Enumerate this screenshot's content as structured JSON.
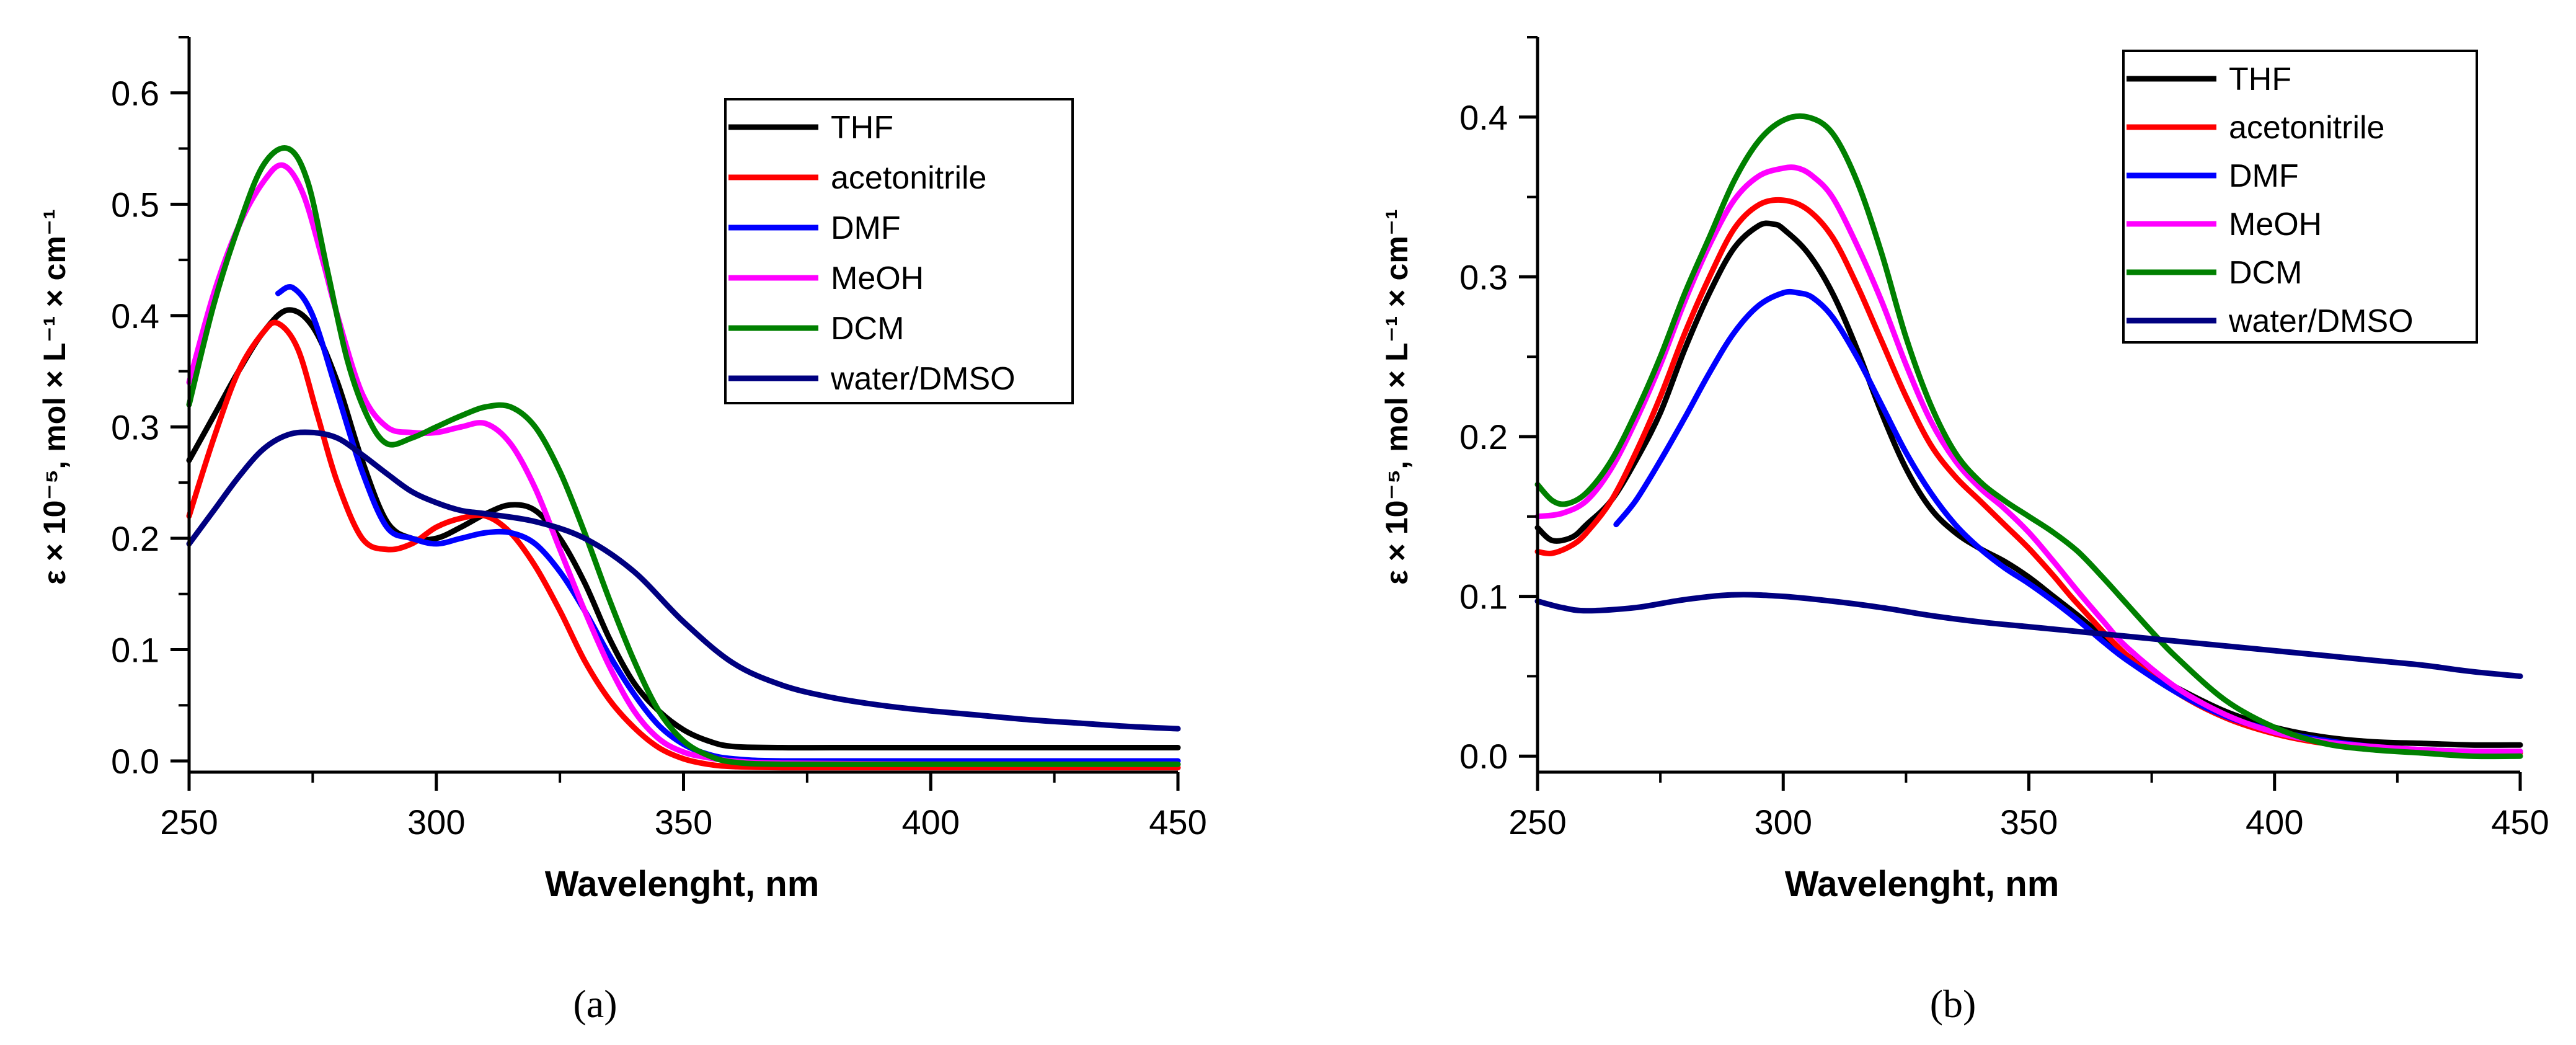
{
  "chart_data": [
    {
      "type": "line",
      "panel": "a",
      "caption": "(a)",
      "xlabel": "Wavelenght, nm",
      "ylabel": "ε × 10⁻⁵, mol × L⁻¹ × cm⁻¹",
      "xlim": [
        250,
        450
      ],
      "ylim": [
        -0.01,
        0.65
      ],
      "xticks": [
        250,
        300,
        350,
        400,
        450
      ],
      "yticks": [
        0.0,
        0.1,
        0.2,
        0.3,
        0.4,
        0.5,
        0.6
      ],
      "ytick_labels": [
        "0.0",
        "0.1",
        "0.2",
        "0.3",
        "0.4",
        "0.5",
        "0.6"
      ],
      "legend_position": "top-right",
      "series": [
        {
          "name": "THF",
          "color": "#000000",
          "x": [
            250,
            255,
            260,
            265,
            270,
            275,
            280,
            285,
            290,
            295,
            300,
            305,
            310,
            315,
            320,
            325,
            330,
            335,
            340,
            345,
            350,
            355,
            360,
            370,
            380,
            400,
            425,
            450
          ],
          "y": [
            0.27,
            0.31,
            0.35,
            0.385,
            0.405,
            0.39,
            0.34,
            0.27,
            0.215,
            0.2,
            0.2,
            0.21,
            0.222,
            0.23,
            0.225,
            0.2,
            0.16,
            0.11,
            0.07,
            0.045,
            0.028,
            0.018,
            0.013,
            0.012,
            0.012,
            0.012,
            0.012,
            0.012
          ]
        },
        {
          "name": "acetonitrile",
          "color": "#ff0000",
          "x": [
            250,
            255,
            260,
            265,
            268,
            272,
            276,
            280,
            285,
            290,
            295,
            300,
            305,
            310,
            315,
            320,
            325,
            330,
            335,
            340,
            345,
            350,
            355,
            360,
            370,
            400,
            450
          ],
          "y": [
            0.22,
            0.29,
            0.35,
            0.385,
            0.393,
            0.37,
            0.31,
            0.25,
            0.2,
            0.19,
            0.195,
            0.21,
            0.218,
            0.22,
            0.205,
            0.175,
            0.135,
            0.09,
            0.055,
            0.03,
            0.012,
            0.002,
            -0.003,
            -0.005,
            -0.006,
            -0.006,
            -0.006
          ]
        },
        {
          "name": "DMF",
          "color": "#0000ff",
          "x": [
            268,
            271,
            275,
            280,
            285,
            290,
            295,
            300,
            305,
            310,
            315,
            320,
            325,
            330,
            335,
            340,
            345,
            350,
            355,
            360,
            370,
            400,
            450
          ],
          "y": [
            0.42,
            0.425,
            0.4,
            0.33,
            0.26,
            0.21,
            0.2,
            0.195,
            0.2,
            0.205,
            0.205,
            0.195,
            0.17,
            0.135,
            0.095,
            0.06,
            0.032,
            0.015,
            0.006,
            0.002,
            0.0,
            0.0,
            0.0
          ]
        },
        {
          "name": "MeOH",
          "color": "#ff00ff",
          "x": [
            250,
            255,
            260,
            265,
            269,
            273,
            277,
            280,
            285,
            290,
            295,
            300,
            305,
            310,
            315,
            320,
            325,
            330,
            335,
            340,
            345,
            350,
            355,
            360,
            370,
            400,
            450
          ],
          "y": [
            0.34,
            0.42,
            0.48,
            0.52,
            0.535,
            0.51,
            0.45,
            0.4,
            0.33,
            0.3,
            0.295,
            0.295,
            0.3,
            0.303,
            0.285,
            0.245,
            0.19,
            0.135,
            0.085,
            0.045,
            0.02,
            0.008,
            0.003,
            0.0,
            -0.002,
            -0.003,
            -0.003
          ]
        },
        {
          "name": "DCM",
          "color": "#008000",
          "x": [
            250,
            255,
            260,
            265,
            270,
            274,
            278,
            282,
            286,
            290,
            295,
            300,
            305,
            310,
            315,
            320,
            325,
            330,
            335,
            340,
            345,
            350,
            355,
            360,
            370,
            400,
            450
          ],
          "y": [
            0.32,
            0.41,
            0.48,
            0.535,
            0.55,
            0.52,
            0.44,
            0.36,
            0.31,
            0.285,
            0.29,
            0.3,
            0.31,
            0.318,
            0.318,
            0.3,
            0.26,
            0.205,
            0.145,
            0.09,
            0.045,
            0.018,
            0.005,
            -0.001,
            -0.003,
            -0.003,
            -0.003
          ]
        },
        {
          "name": "water/DMSO",
          "color": "#000080",
          "x": [
            250,
            255,
            260,
            265,
            270,
            275,
            280,
            285,
            290,
            295,
            300,
            305,
            310,
            320,
            330,
            340,
            350,
            360,
            370,
            380,
            390,
            400,
            410,
            420,
            430,
            440,
            450
          ],
          "y": [
            0.195,
            0.225,
            0.255,
            0.28,
            0.293,
            0.295,
            0.29,
            0.275,
            0.258,
            0.242,
            0.232,
            0.225,
            0.222,
            0.215,
            0.2,
            0.17,
            0.125,
            0.088,
            0.068,
            0.057,
            0.05,
            0.045,
            0.041,
            0.037,
            0.034,
            0.031,
            0.029
          ]
        }
      ]
    },
    {
      "type": "line",
      "panel": "b",
      "caption": "(b)",
      "xlabel": "Wavelenght, nm",
      "ylabel": "ε × 10⁻⁵, mol × L⁻¹ × cm⁻¹",
      "xlim": [
        250,
        450
      ],
      "ylim": [
        -0.01,
        0.45
      ],
      "xticks": [
        250,
        300,
        350,
        400,
        450
      ],
      "yticks": [
        0.0,
        0.1,
        0.2,
        0.3,
        0.4
      ],
      "ytick_labels": [
        "0.0",
        "0.1",
        "0.2",
        "0.3",
        "0.4"
      ],
      "legend_position": "top-right",
      "series": [
        {
          "name": "THF",
          "color": "#000000",
          "x": [
            250,
            253,
            257,
            260,
            265,
            270,
            275,
            280,
            285,
            290,
            295,
            298,
            300,
            305,
            310,
            315,
            320,
            325,
            330,
            335,
            340,
            345,
            350,
            355,
            360,
            365,
            370,
            375,
            380,
            390,
            400,
            410,
            420,
            430,
            440,
            450
          ],
          "y": [
            0.143,
            0.135,
            0.137,
            0.145,
            0.16,
            0.185,
            0.215,
            0.255,
            0.29,
            0.318,
            0.332,
            0.333,
            0.33,
            0.315,
            0.29,
            0.255,
            0.215,
            0.18,
            0.155,
            0.14,
            0.13,
            0.122,
            0.112,
            0.1,
            0.088,
            0.075,
            0.063,
            0.052,
            0.043,
            0.028,
            0.018,
            0.012,
            0.009,
            0.008,
            0.007,
            0.007
          ]
        },
        {
          "name": "acetonitrile",
          "color": "#ff0000",
          "x": [
            250,
            253,
            257,
            260,
            265,
            270,
            275,
            280,
            285,
            290,
            295,
            300,
            305,
            310,
            315,
            320,
            325,
            330,
            335,
            340,
            345,
            350,
            355,
            360,
            370,
            380,
            390,
            400,
            410,
            420,
            430,
            440,
            450
          ],
          "y": [
            0.128,
            0.127,
            0.132,
            0.14,
            0.16,
            0.19,
            0.225,
            0.265,
            0.3,
            0.33,
            0.345,
            0.348,
            0.342,
            0.325,
            0.295,
            0.26,
            0.225,
            0.195,
            0.175,
            0.16,
            0.145,
            0.13,
            0.113,
            0.095,
            0.063,
            0.04,
            0.024,
            0.014,
            0.008,
            0.005,
            0.003,
            0.002,
            0.002
          ]
        },
        {
          "name": "DMF",
          "color": "#0000ff",
          "x": [
            266,
            270,
            275,
            280,
            285,
            290,
            295,
            300,
            303,
            306,
            310,
            315,
            320,
            325,
            330,
            335,
            340,
            345,
            350,
            355,
            360,
            365,
            370,
            380,
            390,
            400,
            410,
            420,
            430,
            440,
            450
          ],
          "y": [
            0.145,
            0.16,
            0.185,
            0.212,
            0.24,
            0.265,
            0.282,
            0.29,
            0.29,
            0.287,
            0.275,
            0.25,
            0.22,
            0.19,
            0.165,
            0.145,
            0.13,
            0.118,
            0.108,
            0.097,
            0.085,
            0.072,
            0.06,
            0.04,
            0.025,
            0.016,
            0.01,
            0.006,
            0.004,
            0.003,
            0.003
          ]
        },
        {
          "name": "MeOH",
          "color": "#ff00ff",
          "x": [
            250,
            255,
            260,
            265,
            270,
            275,
            280,
            285,
            290,
            295,
            300,
            303,
            306,
            310,
            315,
            320,
            325,
            330,
            335,
            340,
            345,
            350,
            355,
            360,
            365,
            370,
            380,
            390,
            400,
            410,
            420,
            430,
            440,
            450
          ],
          "y": [
            0.15,
            0.152,
            0.16,
            0.18,
            0.21,
            0.245,
            0.285,
            0.32,
            0.348,
            0.363,
            0.368,
            0.368,
            0.363,
            0.35,
            0.32,
            0.285,
            0.245,
            0.21,
            0.185,
            0.168,
            0.155,
            0.14,
            0.122,
            0.103,
            0.085,
            0.068,
            0.043,
            0.026,
            0.015,
            0.009,
            0.006,
            0.004,
            0.003,
            0.003
          ]
        },
        {
          "name": "DCM",
          "color": "#008000",
          "x": [
            250,
            253,
            256,
            260,
            265,
            270,
            275,
            280,
            285,
            290,
            295,
            300,
            305,
            310,
            315,
            320,
            325,
            330,
            335,
            340,
            345,
            350,
            355,
            360,
            365,
            370,
            375,
            380,
            390,
            400,
            410,
            420,
            430,
            440,
            450
          ],
          "y": [
            0.17,
            0.16,
            0.158,
            0.165,
            0.185,
            0.215,
            0.25,
            0.29,
            0.325,
            0.36,
            0.385,
            0.398,
            0.4,
            0.39,
            0.36,
            0.315,
            0.262,
            0.22,
            0.19,
            0.172,
            0.16,
            0.15,
            0.14,
            0.128,
            0.112,
            0.095,
            0.078,
            0.062,
            0.035,
            0.018,
            0.008,
            0.004,
            0.002,
            0.0,
            0.0
          ]
        },
        {
          "name": "water/DMSO",
          "color": "#000080",
          "x": [
            250,
            255,
            260,
            270,
            280,
            290,
            300,
            310,
            320,
            330,
            340,
            350,
            360,
            370,
            380,
            390,
            400,
            410,
            420,
            430,
            440,
            450
          ],
          "y": [
            0.097,
            0.093,
            0.091,
            0.093,
            0.098,
            0.101,
            0.1,
            0.097,
            0.093,
            0.088,
            0.084,
            0.081,
            0.078,
            0.075,
            0.072,
            0.069,
            0.066,
            0.063,
            0.06,
            0.057,
            0.053,
            0.05
          ]
        }
      ]
    }
  ]
}
